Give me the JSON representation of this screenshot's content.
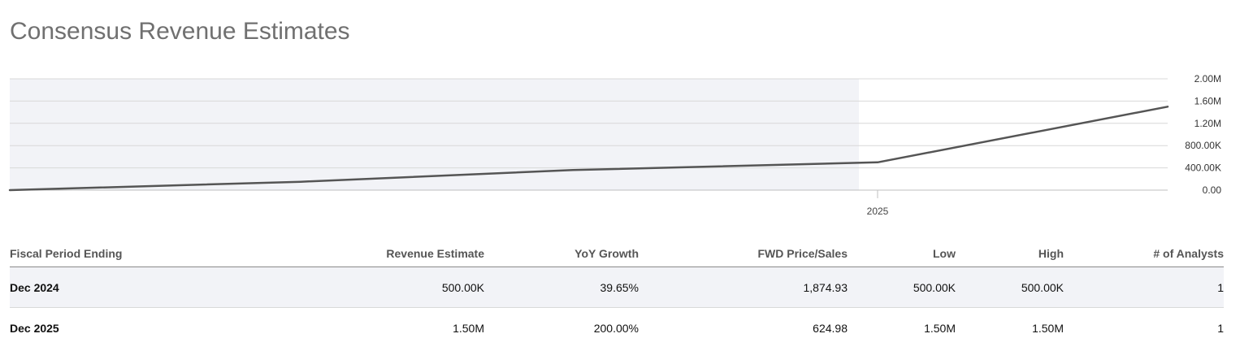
{
  "page": {
    "title": "Consensus Revenue Estimates"
  },
  "chart_data": {
    "type": "line",
    "title": "",
    "xlabel": "",
    "ylabel": "",
    "x_tick_labels": [
      "2025"
    ],
    "y_ticks": [
      0,
      400000,
      800000,
      1200000,
      1600000,
      2000000
    ],
    "y_tick_labels": [
      "0.00",
      "400.00K",
      "800.00K",
      "1.20M",
      "1.60M",
      "2.00M"
    ],
    "ylim": [
      0,
      2000000
    ],
    "grid": true,
    "shaded_region": "historical (left of 2025)",
    "series": [
      {
        "values": [
          0,
          150000,
          360000,
          500000,
          1500000
        ]
      }
    ],
    "line_color": "#555555",
    "shade_color": "#f2f3f7",
    "grid_color": "#d8d8d8"
  },
  "table": {
    "columns": [
      "Fiscal Period Ending",
      "Revenue Estimate",
      "YoY Growth",
      "FWD Price/Sales",
      "Low",
      "High",
      "# of Analysts"
    ],
    "rows": [
      [
        "Dec 2024",
        "500.00K",
        "39.65%",
        "1,874.93",
        "500.00K",
        "500.00K",
        "1"
      ],
      [
        "Dec 2025",
        "1.50M",
        "200.00%",
        "624.98",
        "1.50M",
        "1.50M",
        "1"
      ]
    ]
  }
}
